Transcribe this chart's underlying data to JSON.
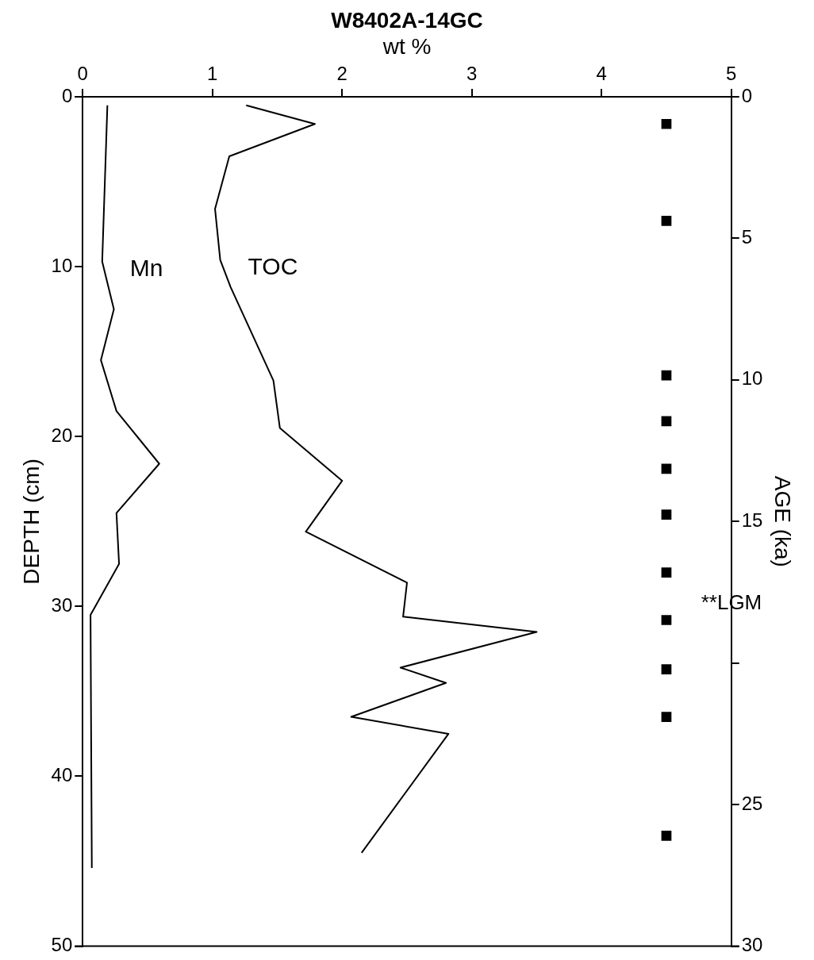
{
  "chart_data": {
    "type": "line",
    "title": "W8402A-14GC",
    "xlabel": "wt %",
    "ylabel": "DEPTH (cm)",
    "y2label": "AGE (ka)",
    "xlim": [
      0,
      5
    ],
    "xticks": [
      0,
      1,
      2,
      3,
      4,
      5
    ],
    "ylim": [
      50,
      0
    ],
    "yticks": [
      0,
      10,
      20,
      30,
      40,
      50
    ],
    "y2lim": [
      30,
      0
    ],
    "y2ticks": [
      0,
      5,
      10,
      15,
      {
        "value": 20,
        "label": null
      },
      25,
      30
    ],
    "grid": false,
    "legend": false,
    "marker": "none",
    "line_style": "solid",
    "series": [
      {
        "name": "Mn",
        "color": "#000000",
        "x": [
          0.19,
          0.15,
          0.24,
          0.14,
          0.26,
          0.59,
          0.26,
          0.28,
          0.06,
          0.07
        ],
        "values": [
          0.5,
          9.7,
          12.5,
          15.5,
          18.5,
          21.6,
          24.5,
          27.5,
          30.5,
          45.4
        ]
      },
      {
        "name": "TOC",
        "color": "#000000",
        "x": [
          1.26,
          1.79,
          1.13,
          1.02,
          1.06,
          1.14,
          1.47,
          1.52,
          2.0,
          1.72,
          2.5,
          2.47,
          3.5,
          2.45,
          2.8,
          2.07,
          2.82,
          2.15
        ],
        "values": [
          0.5,
          1.6,
          3.5,
          6.6,
          9.6,
          11.2,
          16.7,
          19.5,
          22.6,
          25.6,
          28.6,
          30.6,
          31.5,
          33.6,
          34.5,
          36.5,
          37.5,
          44.5
        ]
      },
      {
        "type": "scatter",
        "marker": "square",
        "color": "#000000",
        "x": [
          4.5,
          4.5,
          4.5,
          4.5,
          4.5,
          4.5,
          4.5,
          4.5,
          4.5,
          4.5,
          4.5
        ],
        "values": [
          1.6,
          7.3,
          16.4,
          19.1,
          21.9,
          24.6,
          28.0,
          30.8,
          33.7,
          36.5,
          43.5
        ]
      }
    ],
    "annotations": [
      "**LGM"
    ]
  }
}
